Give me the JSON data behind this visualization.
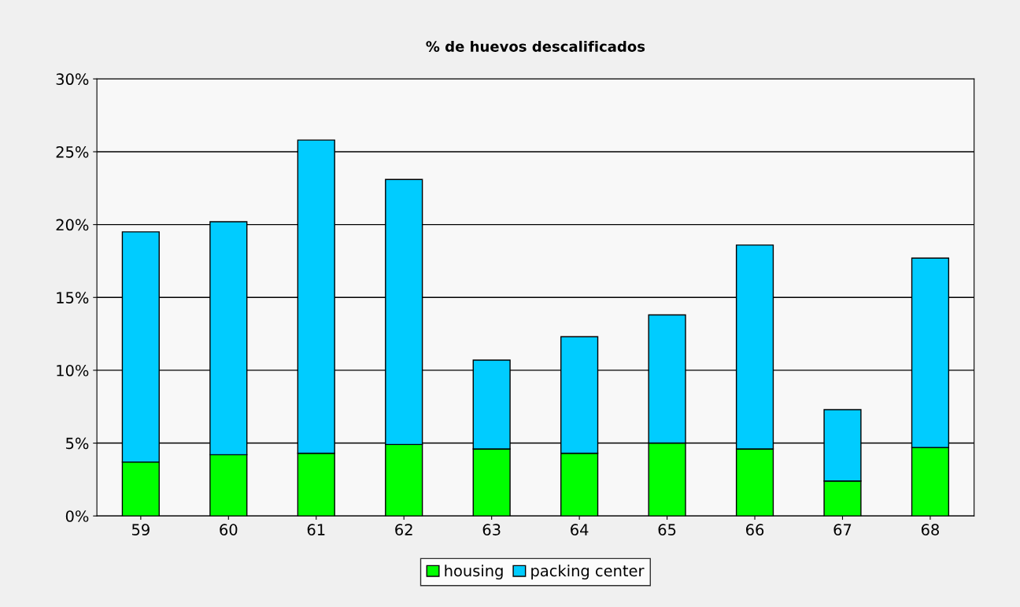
{
  "chart_data": {
    "type": "bar",
    "title": "% de huevos descalificados",
    "stacked": true,
    "categories": [
      "59",
      "60",
      "61",
      "62",
      "63",
      "64",
      "65",
      "66",
      "67",
      "68"
    ],
    "series": [
      {
        "name": "housing",
        "color": "#00ff00",
        "values": [
          3.7,
          4.2,
          4.3,
          4.9,
          4.6,
          4.3,
          5.0,
          4.6,
          2.4,
          4.7
        ]
      },
      {
        "name": "packing center",
        "color": "#00ccff",
        "values": [
          15.8,
          16.0,
          21.5,
          18.2,
          6.1,
          8.0,
          8.8,
          14.0,
          4.9,
          13.0
        ]
      }
    ],
    "ylim": [
      0,
      30
    ],
    "yticks": [
      {
        "value": 0,
        "label": "0%"
      },
      {
        "value": 5,
        "label": "5%"
      },
      {
        "value": 10,
        "label": "10%"
      },
      {
        "value": 15,
        "label": "15%"
      },
      {
        "value": 20,
        "label": "20%"
      },
      {
        "value": 25,
        "label": "25%"
      },
      {
        "value": 30,
        "label": "30%"
      }
    ],
    "grid": "y",
    "legend": "bottom"
  }
}
